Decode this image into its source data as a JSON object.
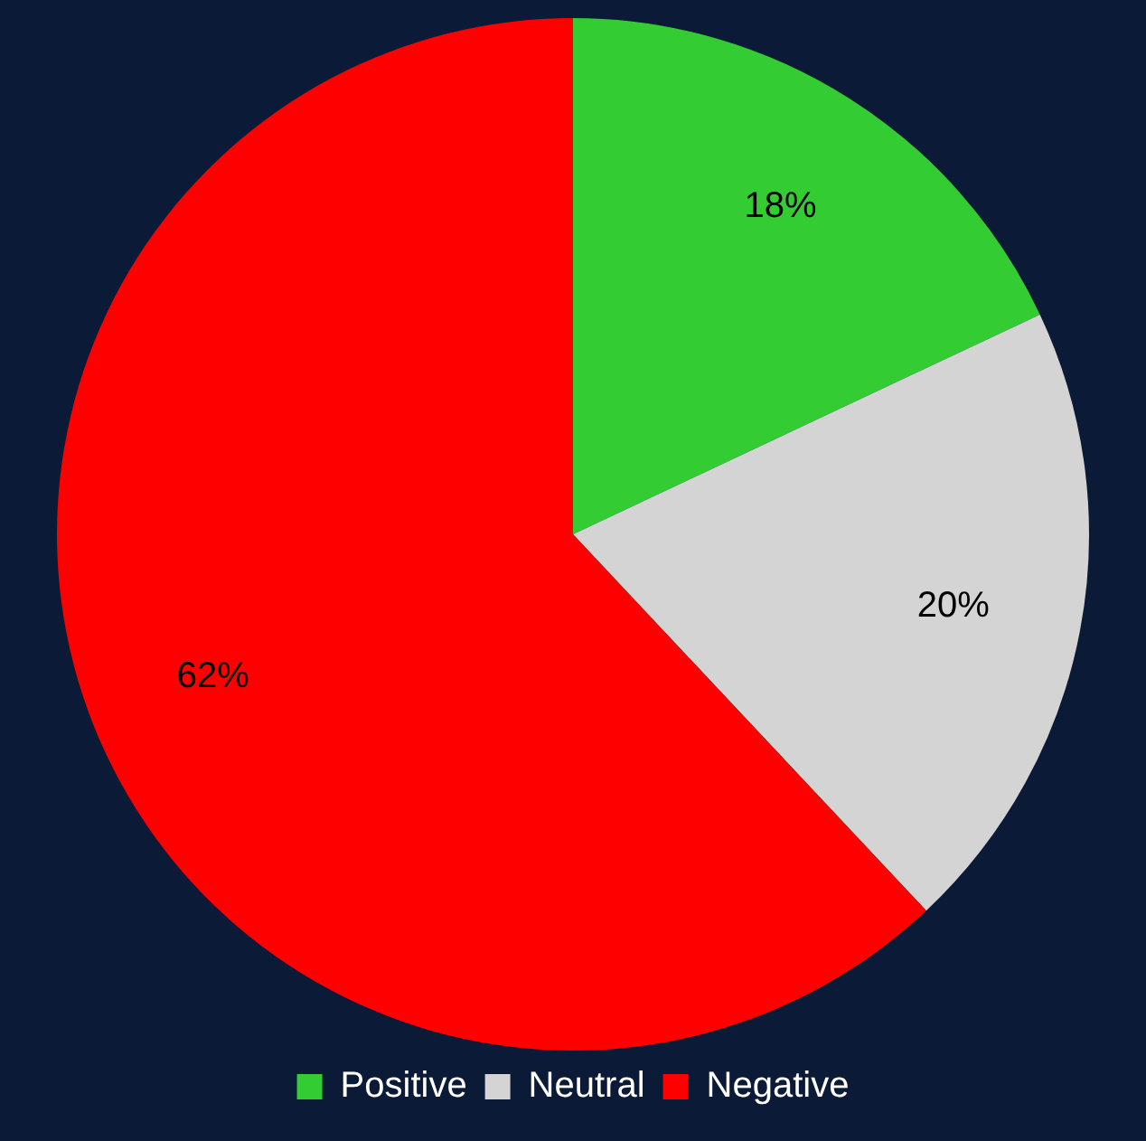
{
  "chart_data": {
    "type": "pie",
    "categories": [
      "Positive",
      "Neutral",
      "Negative"
    ],
    "values": [
      18,
      20,
      62
    ],
    "colors": [
      "#33cc33",
      "#d4d4d4",
      "#ff0000"
    ],
    "value_labels": [
      "18%",
      "20%",
      "62%"
    ],
    "legend": "bottom"
  }
}
